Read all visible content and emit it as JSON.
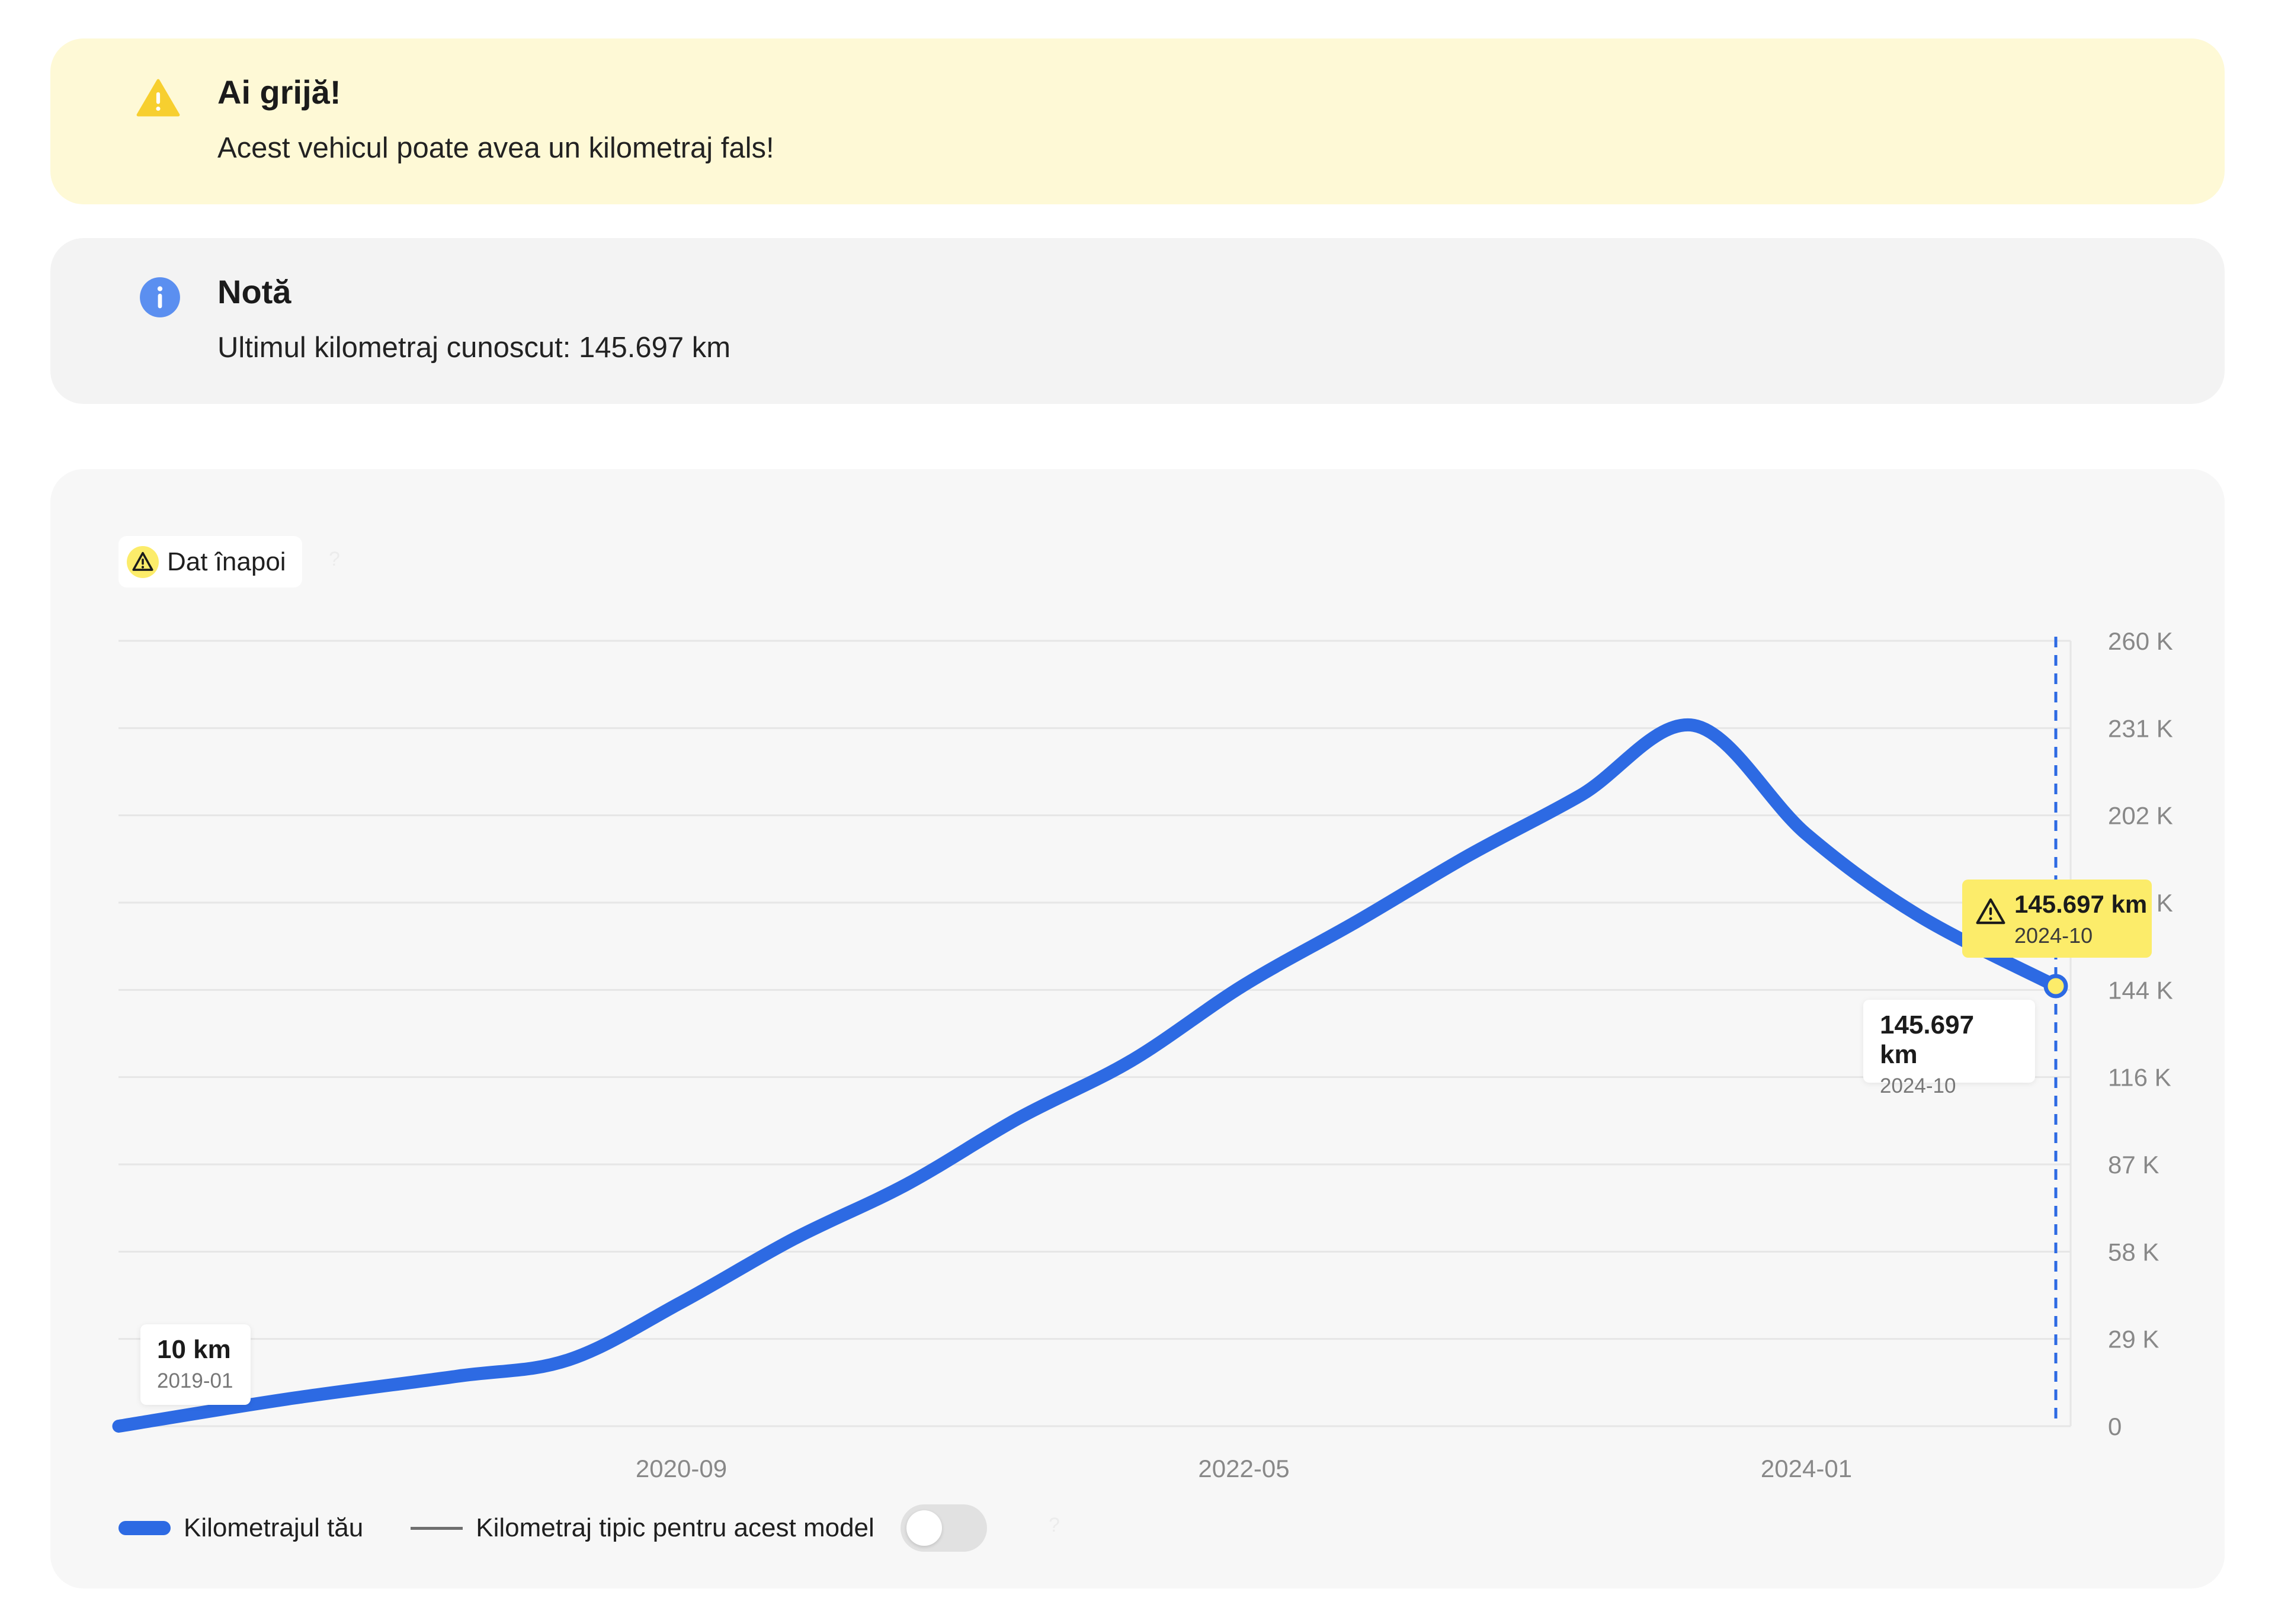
{
  "warning": {
    "title": "Ai grijă!",
    "text": "Acest vehicul poate avea un kilometraj fals!",
    "icon": "warning-triangle-icon",
    "color": "#f7cf2f"
  },
  "note": {
    "title": "Notă",
    "text": "Ultimul kilometraj cunoscut: 145.697 km",
    "icon": "info-icon",
    "color": "#5b8ff0"
  },
  "chip": {
    "label": "Dat înapoi",
    "icon": "warning-triangle-icon",
    "help": "?"
  },
  "tooltips": {
    "start": {
      "value": "10 km",
      "date": "2019-01"
    },
    "end": {
      "value": "145.697 km",
      "date": "2024-10"
    },
    "flag": {
      "value": "145.697 km",
      "date": "2024-10"
    }
  },
  "legend": {
    "series_label": "Kilometrajul tău",
    "typical_label": "Kilometraj tipic pentru acest model",
    "typical_toggle_on": false,
    "help": "?"
  },
  "chart_data": {
    "type": "line",
    "title": "",
    "xlabel": "",
    "ylabel": "",
    "x_ticks": [
      "2020-09",
      "2022-05",
      "2024-01"
    ],
    "y_ticks": [
      "0",
      "29 K",
      "58 K",
      "87 K",
      "116 K",
      "144 K",
      "173 K",
      "202 K",
      "231 K",
      "260 K"
    ],
    "ylim": [
      0,
      260000
    ],
    "grid": true,
    "series": [
      {
        "name": "Kilometrajul tău",
        "color": "#2d6ae3",
        "x": [
          "2019-01",
          "2019-07",
          "2020-01",
          "2020-05",
          "2020-09",
          "2021-01",
          "2021-05",
          "2021-09",
          "2022-01",
          "2022-05",
          "2022-09",
          "2023-01",
          "2023-05",
          "2023-09",
          "2024-01",
          "2024-05",
          "2024-10"
        ],
        "y": [
          10,
          9000,
          16500,
          22000,
          41000,
          62000,
          80000,
          102000,
          121000,
          146000,
          167000,
          189000,
          209000,
          232000,
          196000,
          169000,
          145697
        ]
      }
    ],
    "marker": {
      "x": "2024-10",
      "y": 145697,
      "label": "145.697 km",
      "flag": "Dat înapoi"
    }
  }
}
